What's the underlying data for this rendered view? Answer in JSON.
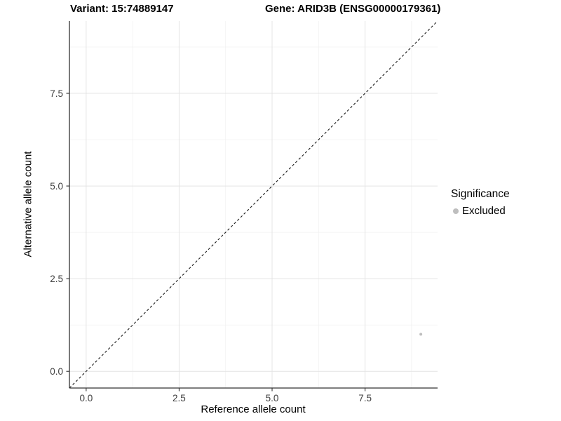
{
  "title": {
    "variant": "Variant: 15:74889147",
    "gene": "Gene: ARID3B (ENSG00000179361)"
  },
  "chart_data": {
    "type": "scatter",
    "xlabel": "Reference allele count",
    "ylabel": "Alternative allele count",
    "xlim": [
      -0.45,
      9.45
    ],
    "ylim": [
      -0.45,
      9.45
    ],
    "x_ticks": [
      0.0,
      2.5,
      5.0,
      7.5
    ],
    "x_tick_labels": [
      "0.0",
      "2.5",
      "5.0",
      "7.5"
    ],
    "y_ticks": [
      0.0,
      2.5,
      5.0,
      7.5
    ],
    "y_tick_labels": [
      "0.0",
      "2.5",
      "5.0",
      "7.5"
    ],
    "x_minor_ticks": [
      1.25,
      3.75,
      6.25,
      8.75
    ],
    "y_minor_ticks": [
      1.25,
      3.75,
      6.25,
      8.75
    ],
    "grid": true,
    "points": [
      {
        "x": 9,
        "y": 1,
        "series": "Excluded"
      }
    ],
    "reference_line": {
      "kind": "identity",
      "slope": 1,
      "intercept": 0,
      "style": "dashed"
    },
    "legend": {
      "title": "Significance",
      "position": "right",
      "entries": [
        {
          "label": "Excluded",
          "color": "#bebebe"
        }
      ]
    }
  },
  "colors": {
    "background": "#ffffff",
    "axis_line": "#333333",
    "tick_label": "#404040",
    "grid_major": "#e4e4e4",
    "grid_minor": "#f0f0f0",
    "reference_line": "#1a1a1a",
    "point": "#bebebe"
  }
}
